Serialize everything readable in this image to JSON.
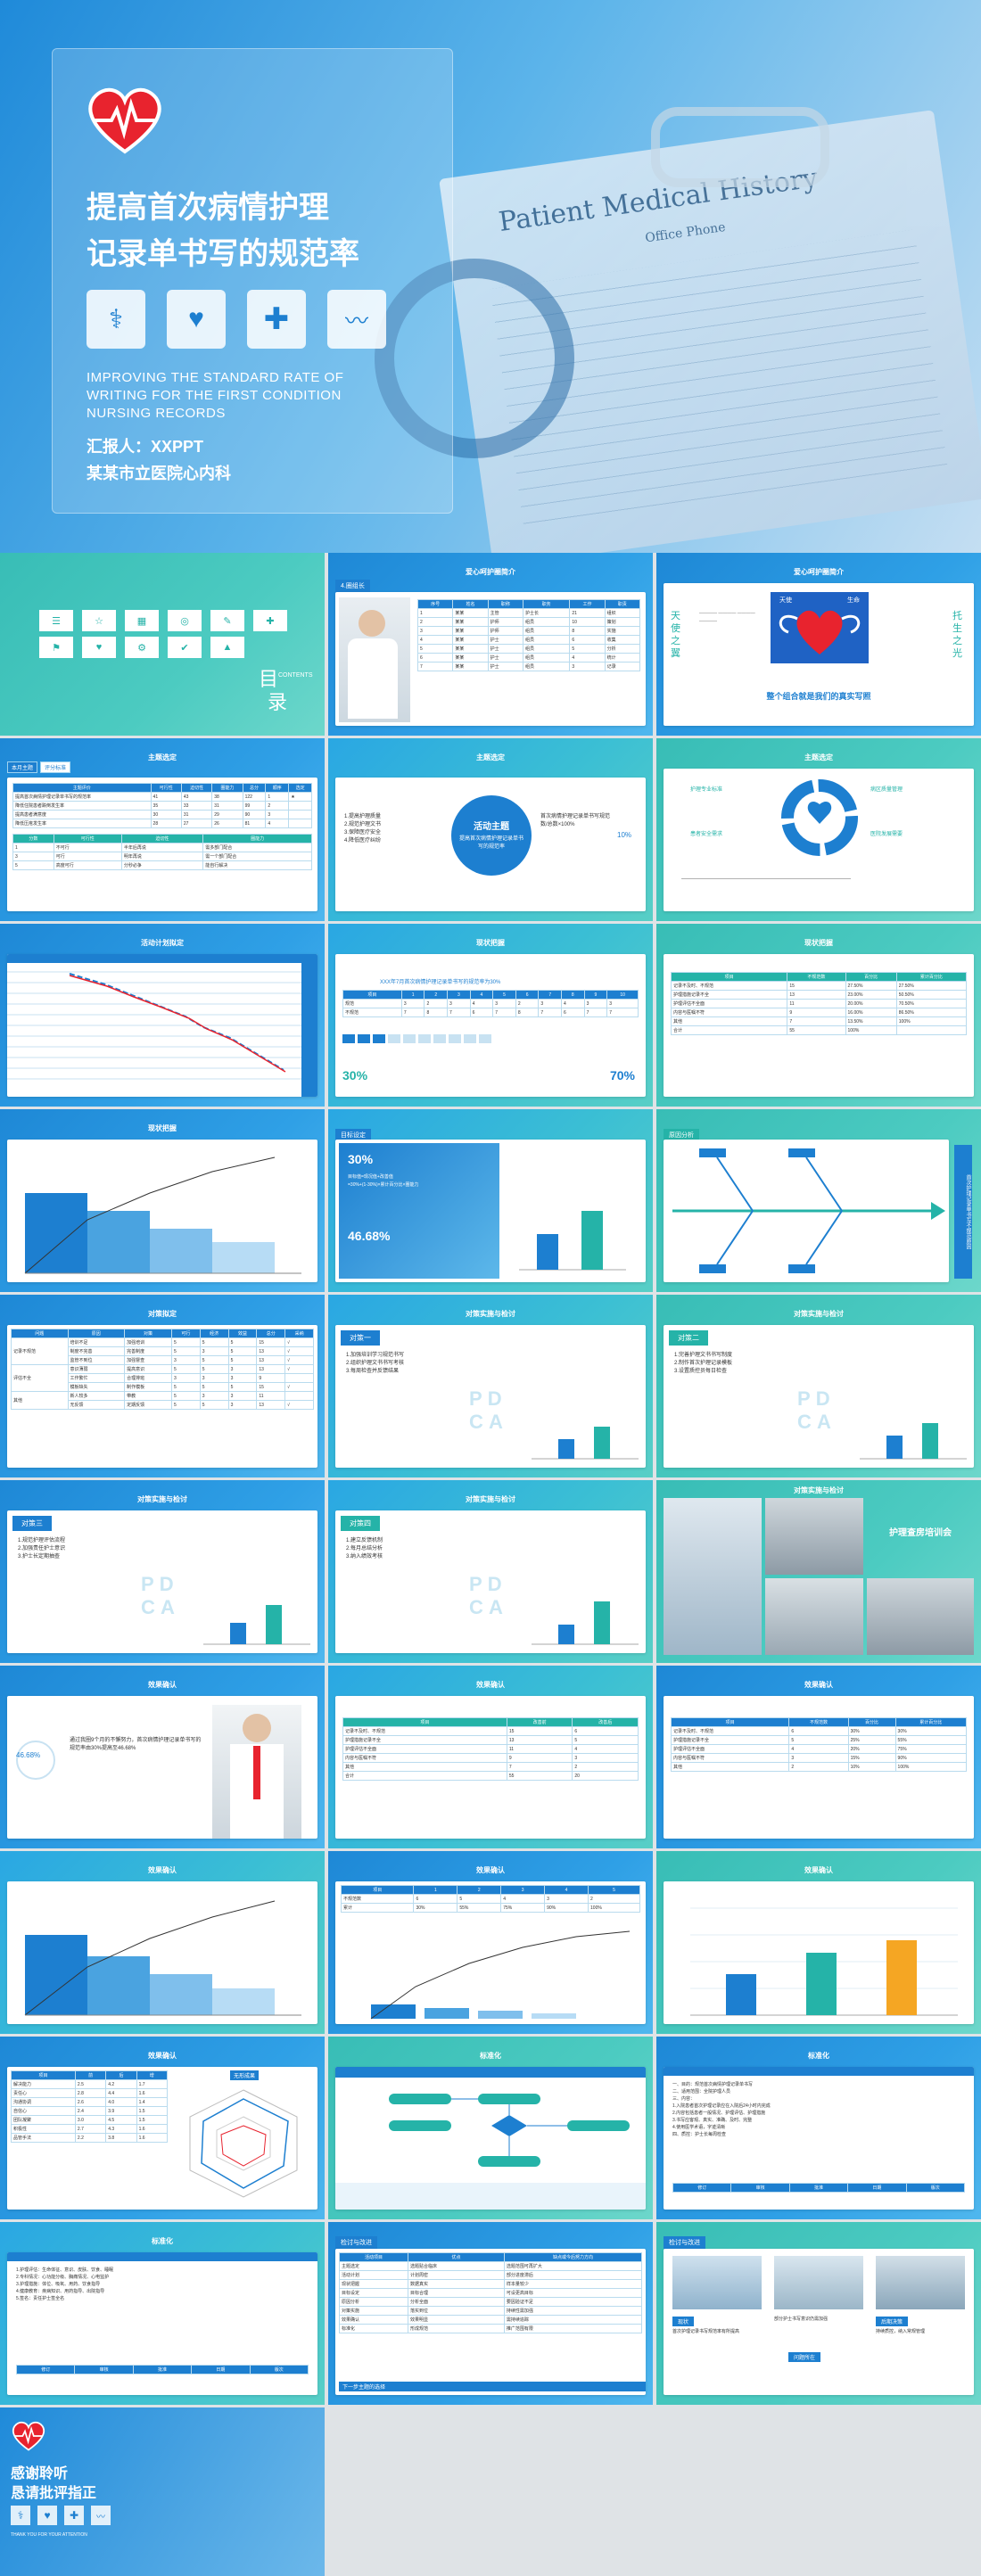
{
  "cover": {
    "title_line1": "提高首次病情护理",
    "title_line2": "记录单书写的规范率",
    "en_line1": "IMPROVING THE STANDARD RATE OF",
    "en_line2": "WRITING FOR THE FIRST CONDITION",
    "en_line3": "NURSING RECORDS",
    "reporter": "汇报人：XXPPT",
    "hospital": "某某市立医院心内科",
    "doc_title1": "Patient Medical History",
    "doc_title2": "Office Phone"
  },
  "toc": {
    "mu": "目",
    "lu": "录",
    "contents": "CONTENTS"
  },
  "s3": {
    "tag": "4.圈组长",
    "title": "爱心呵护圈简介",
    "col": "圈员组成"
  },
  "s4": {
    "title": "爱心呵护圈简介",
    "heart_label1": "天使",
    "heart_label2": "生命",
    "caption": "整个组合就是我们的真实写照",
    "side1": "天使之翼",
    "side2": "托生之光"
  },
  "s5": {
    "title": "主题选定",
    "tabs": [
      "本月主题",
      "评分标准"
    ]
  },
  "s6": {
    "title": "主题选定",
    "theme": "活动主题",
    "theme_desc": "提高首次病情护理记录单书写的规范率",
    "pct": "10%"
  },
  "s7": {
    "title": "主题选定"
  },
  "s8": {
    "title": "活动计划拟定"
  },
  "s9": {
    "title": "现状把握",
    "pct_left": "30%",
    "pct_right": "70%",
    "sub": "XXX年7月首次病情护理记录单书写的规范率为30%"
  },
  "s10": {
    "title": "现状把握"
  },
  "s11": {
    "title": "现状把握"
  },
  "s12": {
    "title": "目标设定",
    "pct1": "30%",
    "pct2": "46.68%"
  },
  "s13": {
    "title": "原因分析",
    "side": "首次护理记录单书写不规范原因"
  },
  "s14": {
    "title": "对策拟定"
  },
  "s15": {
    "title": "对策实施与检讨",
    "plan": "对策一"
  },
  "s16": {
    "title": "对策实施与检讨",
    "plan": "对策二"
  },
  "s17": {
    "title": "对策实施与检讨",
    "plan": "对策三"
  },
  "s18": {
    "title": "对策实施与检讨",
    "plan": "对策四"
  },
  "s19": {
    "title": "对策实施与检讨",
    "banner": "护理查房培训会"
  },
  "s20": {
    "title": "效果确认",
    "pct": "46.68%"
  },
  "s21": {
    "title": "效果确认"
  },
  "s22": {
    "title": "效果确认"
  },
  "s23": {
    "title": "效果确认"
  },
  "s24": {
    "title": "效果确认"
  },
  "s25": {
    "title": "效果确认"
  },
  "s26": {
    "title": "效果确认",
    "radar_title": "无形成果"
  },
  "s27": {
    "title": "标准化"
  },
  "s28": {
    "title": "标准化"
  },
  "s29": {
    "title": "标准化"
  },
  "s30": {
    "title": "检讨与改进",
    "footer": "下一步主题的选择"
  },
  "s31": {
    "title": "检讨与改进",
    "labels": [
      "现状",
      "问题所在",
      "后期决策"
    ]
  },
  "thanks": {
    "line1": "感谢聆听",
    "line2": "恳请批评指正",
    "en": "THANK YOU FOR YOUR ATTENTION"
  },
  "colors": {
    "blue": "#1d7fd0",
    "teal": "#25b3a8",
    "red": "#e8232e",
    "orange": "#f5a623"
  }
}
